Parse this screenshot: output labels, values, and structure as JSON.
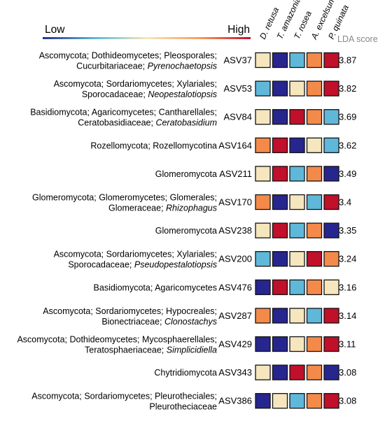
{
  "chart_data": {
    "type": "heatmap",
    "legend": {
      "low_label": "Low",
      "high_label": "High",
      "gradient_colors": [
        "#2b2f8f",
        "#5cb8d8",
        "#f5e8b8",
        "#f7a05a",
        "#c8102e"
      ]
    },
    "columns": [
      "D. retusa",
      "T. amazonia",
      "T. rosea",
      "A. excelsum",
      "P. quinata"
    ],
    "lda_header": "LDA score",
    "palette": {
      "dark_blue": "#27268f",
      "light_blue": "#5fb8d9",
      "cream": "#f6e6bd",
      "orange": "#f48a4a",
      "red": "#c0102a"
    },
    "rows": [
      {
        "taxonomy_line1": "Ascomycota; Dothideomycetes; Pleosporales;",
        "taxonomy_line2": "Cucurbitariaceae;",
        "genus": "Pyrenochaetopsis",
        "asv": "ASV37",
        "lda": "3.87",
        "cells": [
          "cream",
          "dark_blue",
          "light_blue",
          "orange",
          "red"
        ]
      },
      {
        "taxonomy_line1": "Ascomycota; Sordariomycetes; Xylariales;",
        "taxonomy_line2": "Sporocadaceae;",
        "genus": "Neopestalotiopsis",
        "asv": "ASV53",
        "lda": "3.82",
        "cells": [
          "light_blue",
          "dark_blue",
          "cream",
          "orange",
          "red"
        ]
      },
      {
        "taxonomy_line1": "Basidiomycota; Agaricomycetes; Cantharellales;",
        "taxonomy_line2": "Ceratobasidiaceae;",
        "genus": "Ceratobasidium",
        "asv": "ASV84",
        "lda": "3.69",
        "cells": [
          "cream",
          "dark_blue",
          "red",
          "orange",
          "light_blue"
        ]
      },
      {
        "taxonomy_line1": "Rozellomycota; Rozellomycotina",
        "taxonomy_line2": "",
        "genus": "",
        "asv": "ASV164",
        "lda": "3.62",
        "cells": [
          "orange",
          "red",
          "dark_blue",
          "cream",
          "light_blue"
        ]
      },
      {
        "taxonomy_line1": "Glomeromycota",
        "taxonomy_line2": "",
        "genus": "",
        "asv": "ASV211",
        "lda": "3.49",
        "cells": [
          "cream",
          "red",
          "light_blue",
          "orange",
          "dark_blue"
        ]
      },
      {
        "taxonomy_line1": "Glomeromycota; Glomeromycetes; Glomerales;",
        "taxonomy_line2": "Glomeraceae;",
        "genus": "Rhizophagus",
        "asv": "ASV170",
        "lda": "3.4",
        "cells": [
          "orange",
          "dark_blue",
          "cream",
          "light_blue",
          "red"
        ]
      },
      {
        "taxonomy_line1": "Glomeromycota",
        "taxonomy_line2": "",
        "genus": "",
        "asv": "ASV238",
        "lda": "3.35",
        "cells": [
          "cream",
          "red",
          "light_blue",
          "orange",
          "dark_blue"
        ]
      },
      {
        "taxonomy_line1": "Ascomycota; Sordariomycetes; Xylariales;",
        "taxonomy_line2": "Sporocadaceae;",
        "genus": "Pseudopestalotiopsis",
        "asv": "ASV200",
        "lda": "3.24",
        "cells": [
          "light_blue",
          "dark_blue",
          "cream",
          "red",
          "orange"
        ]
      },
      {
        "taxonomy_line1": "Basidiomycota; Agaricomycetes",
        "taxonomy_line2": "",
        "genus": "",
        "asv": "ASV476",
        "lda": "3.16",
        "cells": [
          "dark_blue",
          "red",
          "light_blue",
          "orange",
          "cream"
        ]
      },
      {
        "taxonomy_line1": "Ascomycota; Sordariomycetes; Hypocreales;",
        "taxonomy_line2": "Bionectriaceae;",
        "genus": "Clonostachys",
        "asv": "ASV287",
        "lda": "3.14",
        "cells": [
          "orange",
          "dark_blue",
          "cream",
          "light_blue",
          "red"
        ]
      },
      {
        "taxonomy_line1": "Ascomycota; Dothideomycetes; Mycosphaerellales;",
        "taxonomy_line2": "Teratosphaeriaceae;",
        "genus": "Simplicidiella",
        "asv": "ASV429",
        "lda": "3.11",
        "cells": [
          "dark_blue",
          "dark_blue",
          "cream",
          "orange",
          "red"
        ]
      },
      {
        "taxonomy_line1": "Chytridiomycota",
        "taxonomy_line2": "",
        "genus": "",
        "asv": "ASV343",
        "lda": "3.08",
        "cells": [
          "cream",
          "dark_blue",
          "red",
          "orange",
          "dark_blue"
        ]
      },
      {
        "taxonomy_line1": "Ascomycota; Sordariomycetes; Pleurotheciales;",
        "taxonomy_line2": "Pleurotheciaceae",
        "genus": "",
        "asv": "ASV386",
        "lda": "3.08",
        "cells": [
          "dark_blue",
          "cream",
          "light_blue",
          "orange",
          "red"
        ]
      }
    ]
  }
}
